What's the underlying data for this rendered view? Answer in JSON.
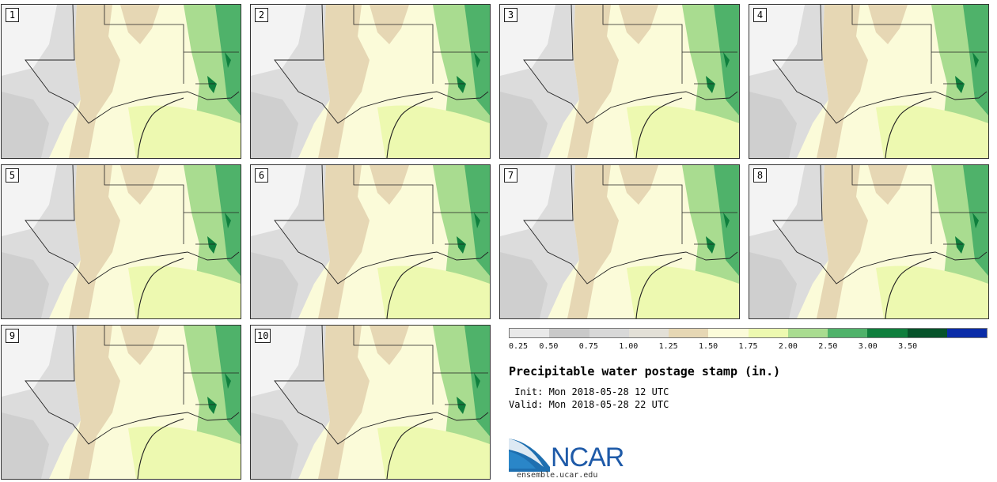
{
  "panels": [
    {
      "label": "1"
    },
    {
      "label": "2"
    },
    {
      "label": "3"
    },
    {
      "label": "4"
    },
    {
      "label": "5"
    },
    {
      "label": "6"
    },
    {
      "label": "7"
    },
    {
      "label": "8"
    },
    {
      "label": "9"
    },
    {
      "label": "10"
    }
  ],
  "colorbar": {
    "colors": [
      "#e9e9e9",
      "#c9c9c9",
      "#d8d8d8",
      "#e3e0d7",
      "#e6d7b4",
      "#fbfbd9",
      "#edf9b0",
      "#a9dc90",
      "#4fb26a",
      "#0f7f3d",
      "#06532a",
      "#0a2ca8"
    ],
    "tick_labels": [
      "0.25",
      "0.50",
      "0.75",
      "1.00",
      "1.25",
      "1.50",
      "1.75",
      "2.00",
      "2.50",
      "3.00",
      "3.50"
    ]
  },
  "title": "Precipitable water postage stamp (in.)",
  "init_line": " Init: Mon 2018-05-28 12 UTC",
  "valid_line": "Valid: Mon 2018-05-28 22 UTC",
  "logo": {
    "text": "NCAR",
    "icon": "ncar-logo-icon"
  },
  "website": "ensemble.ucar.edu"
}
